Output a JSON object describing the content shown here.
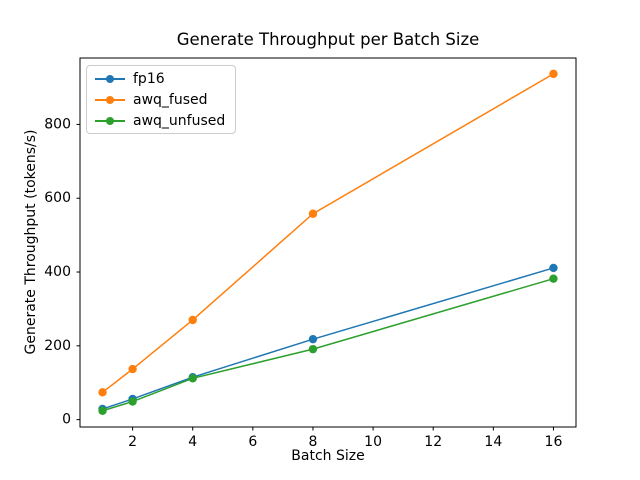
{
  "chart_data": {
    "type": "line",
    "title": "Generate Throughput per Batch Size",
    "xlabel": "Batch Size",
    "ylabel": "Generate Throughput (tokens/s)",
    "x": [
      1,
      2,
      4,
      8,
      16
    ],
    "series": [
      {
        "name": "fp16",
        "color": "#1f77b4",
        "values": [
          29,
          56,
          115,
          218,
          411
        ]
      },
      {
        "name": "awq_fused",
        "color": "#ff7f0e",
        "values": [
          74,
          137,
          270,
          558,
          937
        ]
      },
      {
        "name": "awq_unfused",
        "color": "#2ca02c",
        "values": [
          24,
          49,
          112,
          191,
          382
        ]
      }
    ],
    "xticks": [
      2,
      4,
      6,
      8,
      10,
      12,
      14,
      16
    ],
    "yticks": [
      0,
      200,
      400,
      600,
      800
    ],
    "xlim": [
      0.25,
      16.75
    ],
    "ylim": [
      -20,
      980
    ],
    "grid": false,
    "legend_position": "upper left",
    "marker": "o",
    "axis_color": "#000000",
    "background_color": "#ffffff"
  }
}
